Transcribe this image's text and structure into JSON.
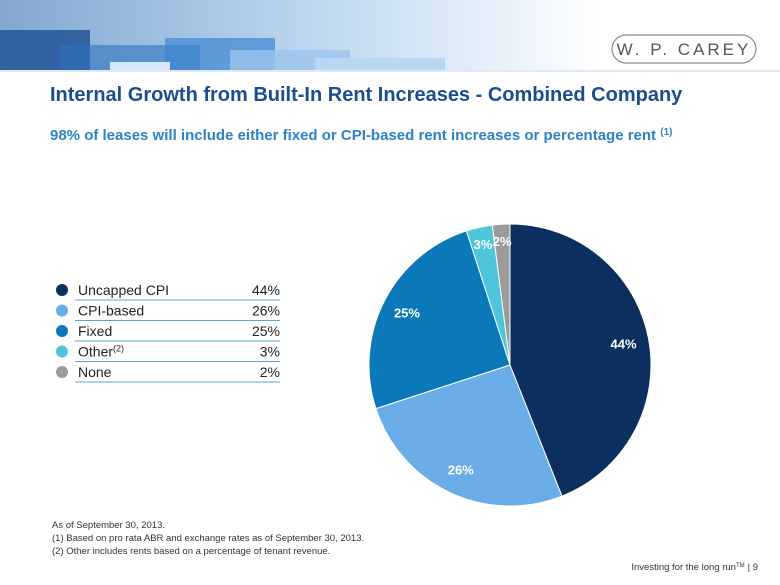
{
  "header": {
    "logo": "W. P. CAREY"
  },
  "chart_data": {
    "type": "pie",
    "title": "Internal Growth from Built-In Rent Increases - Combined Company",
    "subtitle": "98% of leases will include either fixed or CPI-based rent increases or percentage rent",
    "subtitle_note": "(1)",
    "categories": [
      "Uncapped CPI",
      "CPI-based",
      "Fixed",
      "Other",
      "None"
    ],
    "category_notes": [
      null,
      null,
      null,
      "(2)",
      null
    ],
    "values": [
      44,
      26,
      25,
      3,
      2
    ],
    "value_labels": [
      "44%",
      "26%",
      "25%",
      "3%",
      "2%"
    ],
    "colors": [
      "#0b2f5e",
      "#6aace6",
      "#0a78b9",
      "#4fc5dc",
      "#9b9b9b"
    ],
    "legend": "left"
  },
  "footnotes": [
    "As of September 30, 2013.",
    "(1)  Based on pro rata ABR and exchange rates as of September 30, 2013.",
    "(2)  Other includes rents based on a percentage of tenant revenue."
  ],
  "footer": {
    "text": "Investing for the long run",
    "trademark": "TM",
    "page": "| 9"
  }
}
